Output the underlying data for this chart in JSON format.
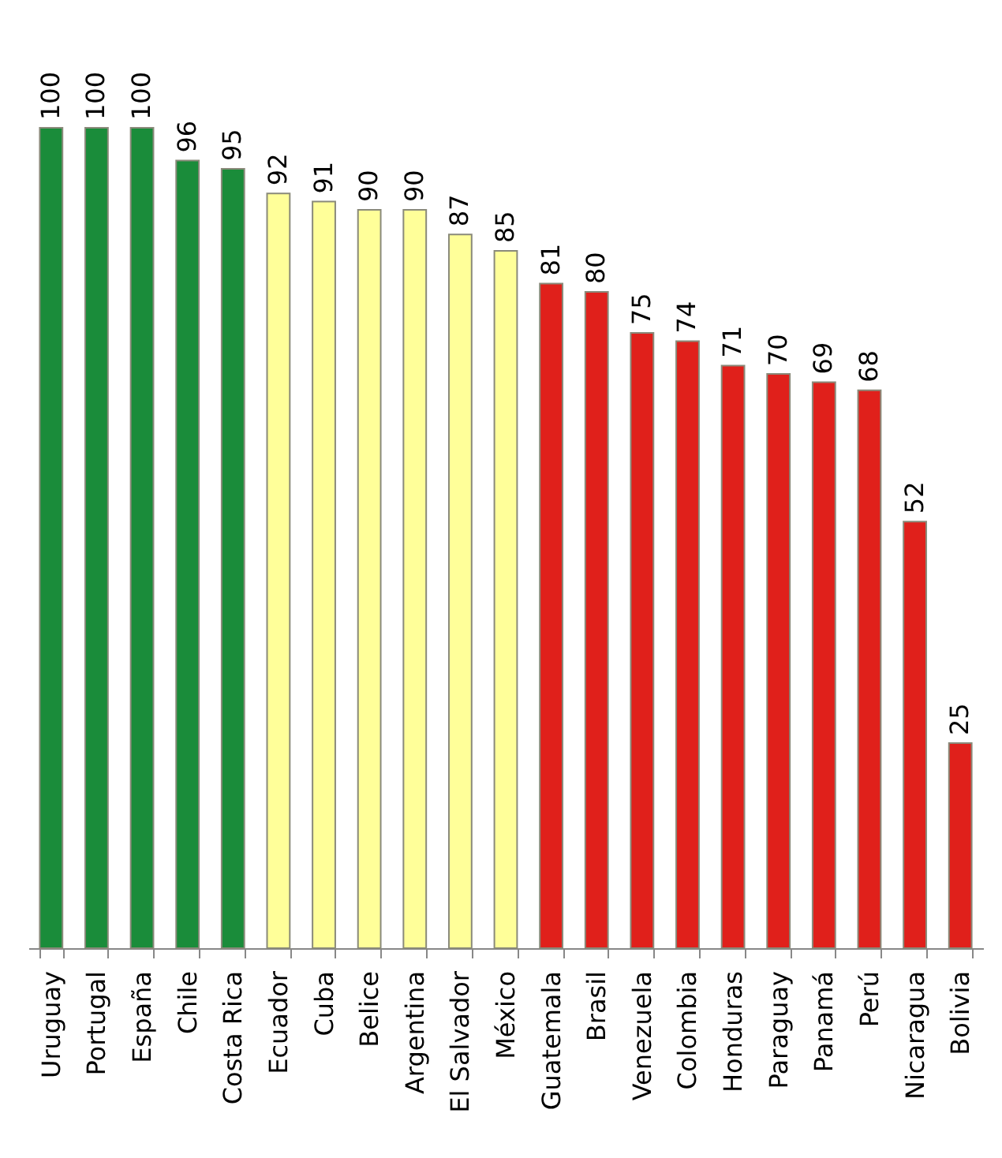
{
  "chart_data": {
    "type": "bar",
    "categories": [
      "Uruguay",
      "Portugal",
      "España",
      "Chile",
      "Costa Rica",
      "Ecuador",
      "Cuba",
      "Belice",
      "Argentina",
      "El Salvador",
      "México",
      "Guatemala",
      "Brasil",
      "Venezuela",
      "Colombia",
      "Honduras",
      "Paraguay",
      "Panamá",
      "Perú",
      "Nicaragua",
      "Bolivia"
    ],
    "values": [
      100,
      100,
      100,
      96,
      95,
      92,
      91,
      90,
      90,
      87,
      85,
      81,
      80,
      75,
      74,
      71,
      70,
      69,
      68,
      52,
      25
    ],
    "colors": [
      "#1a8c3a",
      "#1a8c3a",
      "#1a8c3a",
      "#1a8c3a",
      "#1a8c3a",
      "#ffff99",
      "#ffff99",
      "#ffff99",
      "#ffff99",
      "#ffff99",
      "#ffff99",
      "#e0201b",
      "#e0201b",
      "#e0201b",
      "#e0201b",
      "#e0201b",
      "#e0201b",
      "#e0201b",
      "#e0201b",
      "#e0201b",
      "#e0201b"
    ],
    "data_labels": true
  }
}
